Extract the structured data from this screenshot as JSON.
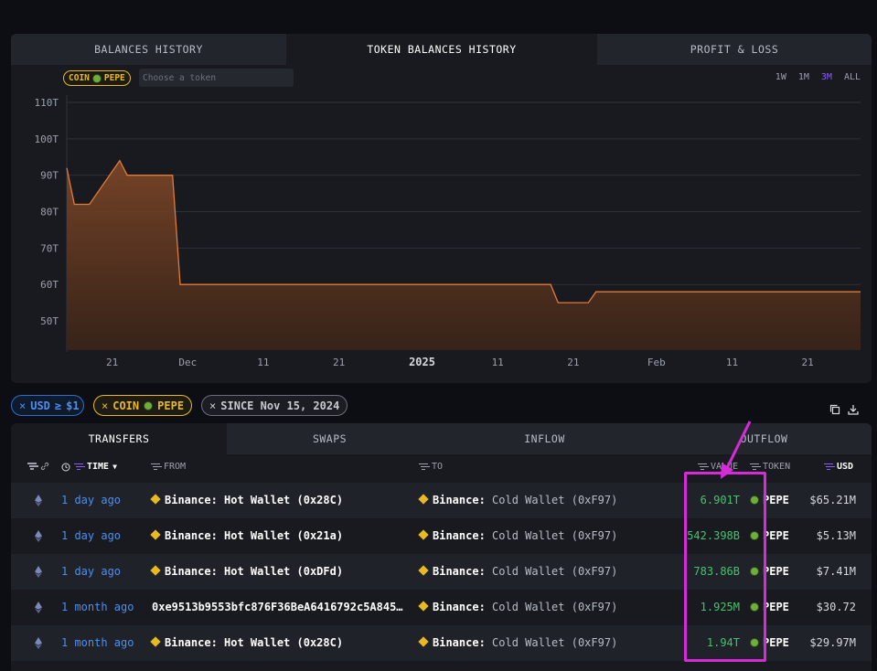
{
  "chart_panel": {
    "tabs": [
      "BALANCES HISTORY",
      "TOKEN BALANCES HISTORY",
      "PROFIT & LOSS"
    ],
    "active_tab": 1,
    "coin_chip": "COIN",
    "coin_token": "PEPE",
    "token_input_placeholder": "Choose a token",
    "ranges": [
      "1W",
      "1M",
      "3M",
      "ALL"
    ],
    "active_range": "3M"
  },
  "chart_data": {
    "type": "area",
    "title": "",
    "xlabel": "",
    "ylabel": "",
    "y_ticks": [
      "110T",
      "100T",
      "90T",
      "80T",
      "70T",
      "60T",
      "50T"
    ],
    "ylim": [
      48,
      112
    ],
    "x_ticks": [
      "21",
      "Dec",
      "11",
      "21",
      "2025",
      "11",
      "21",
      "Feb",
      "11",
      "21"
    ],
    "grid": true,
    "color": "#e07b39",
    "x": [
      "Nov 15",
      "Nov 16",
      "Nov 18",
      "Nov 22",
      "Nov 23",
      "Nov 24",
      "Nov 29",
      "Nov 30",
      "Jan 18",
      "Jan 19",
      "Jan 23",
      "Jan 24",
      "Feb 28"
    ],
    "values": [
      92,
      82,
      82,
      94,
      90,
      90,
      90,
      60,
      60,
      55,
      55,
      58,
      58
    ]
  },
  "filters": {
    "usd_label": "USD",
    "usd_op": "≥",
    "usd_value": "$1",
    "coin_label": "COIN",
    "coin_token": "PEPE",
    "since_label": "SINCE Nov 15, 2024"
  },
  "table": {
    "tabs": [
      "TRANSFERS",
      "SWAPS",
      "INFLOW",
      "OUTFLOW"
    ],
    "active_tab": 0,
    "headers": {
      "time": "TIME",
      "from": "FROM",
      "to": "TO",
      "value": "VALUE",
      "token": "TOKEN",
      "usd": "USD"
    },
    "rows": [
      {
        "time": "1 day ago",
        "from": "Binance: Hot Wallet (0x28C)",
        "to_entity": "Binance:",
        "to_label": "Cold Wallet (0xF97)",
        "value": "6.901T",
        "token": "PEPE",
        "usd": "$65.21M"
      },
      {
        "time": "1 day ago",
        "from": "Binance: Hot Wallet (0x21a)",
        "to_entity": "Binance:",
        "to_label": "Cold Wallet (0xF97)",
        "value": "542.398B",
        "token": "PEPE",
        "usd": "$5.13M"
      },
      {
        "time": "1 day ago",
        "from": "Binance: Hot Wallet (0xDFd)",
        "to_entity": "Binance:",
        "to_label": "Cold Wallet (0xF97)",
        "value": "783.86B",
        "token": "PEPE",
        "usd": "$7.41M"
      },
      {
        "time": "1 month ago",
        "from": "0xe9513b9553bfc876F36BeA6416792c5A845…",
        "to_entity": "Binance:",
        "to_label": "Cold Wallet (0xF97)",
        "value": "1.925M",
        "token": "PEPE",
        "usd": "$30.72"
      },
      {
        "time": "1 month ago",
        "from": "Binance: Hot Wallet (0x28C)",
        "to_entity": "Binance:",
        "to_label": "Cold Wallet (0xF97)",
        "value": "1.94T",
        "token": "PEPE",
        "usd": "$29.97M"
      }
    ]
  }
}
